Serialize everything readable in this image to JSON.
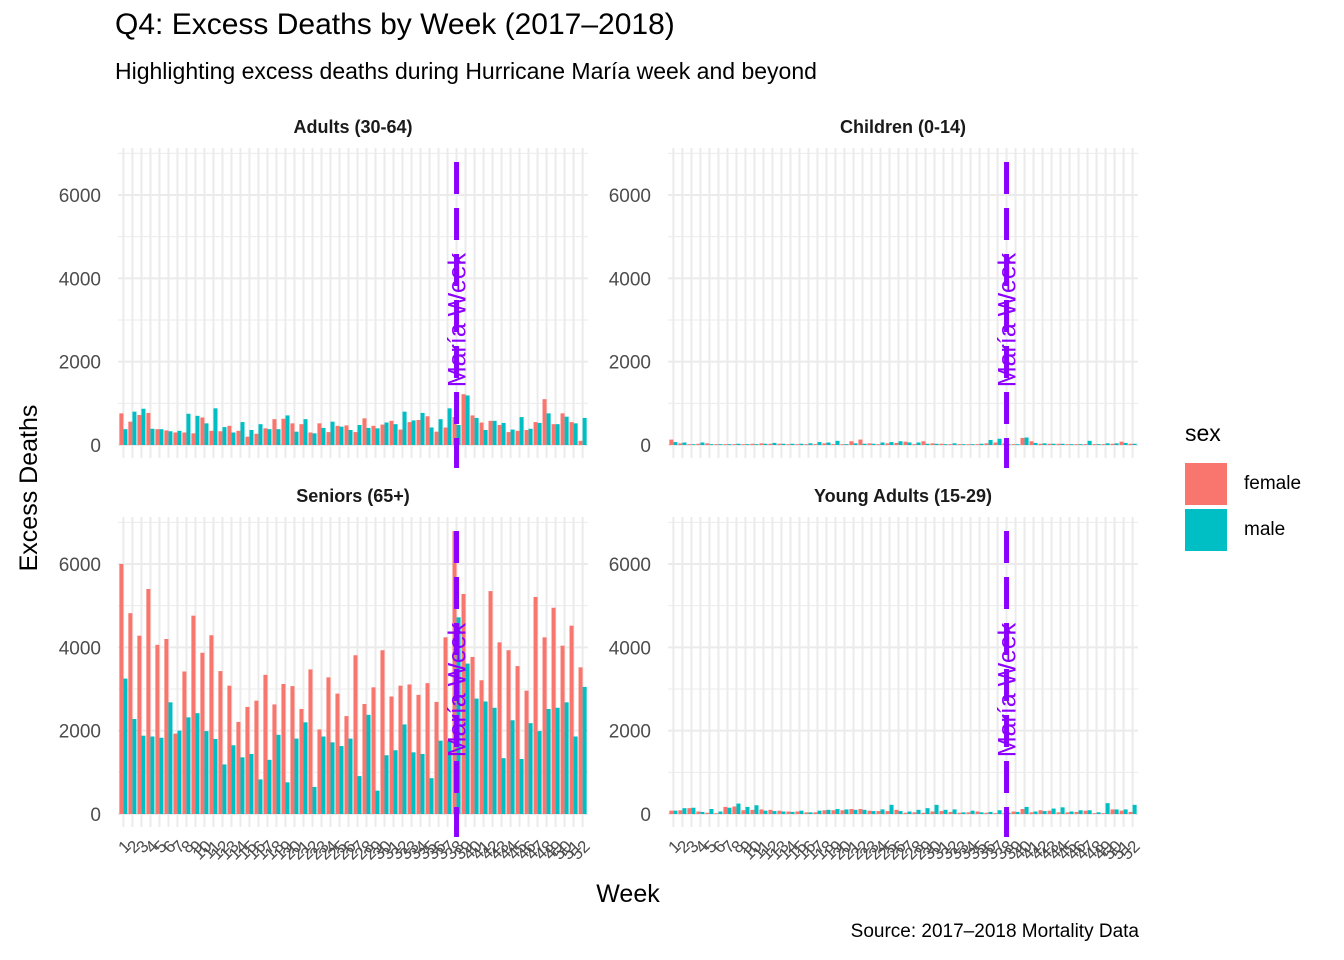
{
  "title": "Q4: Excess Deaths by Week (2017–2018)",
  "subtitle": "Highlighting excess deaths during Hurricane María week and beyond",
  "caption": "Source: 2017–2018 Mortality Data",
  "legend": {
    "title": "sex",
    "items": [
      {
        "label": "female",
        "color": "#F8766D"
      },
      {
        "label": "male",
        "color": "#00BFC4"
      }
    ]
  },
  "chart_data": {
    "type": "bar",
    "xlabel": "Week",
    "ylabel": "Excess Deaths",
    "ylim": [
      0,
      7000
    ],
    "yticks": [
      0,
      2000,
      4000,
      6000
    ],
    "grid": true,
    "legend_position": "right",
    "x": [
      1,
      2,
      3,
      4,
      5,
      6,
      7,
      8,
      9,
      10,
      11,
      12,
      13,
      14,
      15,
      16,
      17,
      18,
      19,
      20,
      21,
      22,
      23,
      24,
      25,
      26,
      27,
      28,
      29,
      30,
      31,
      32,
      33,
      34,
      35,
      36,
      37,
      38,
      39,
      40,
      41,
      42,
      43,
      44,
      45,
      46,
      47,
      48,
      49,
      50,
      51,
      52
    ],
    "vline": {
      "x": 38,
      "label": "María Week",
      "color": "#8B00FF"
    },
    "panels": [
      {
        "name": "Adults (30-64)",
        "series": [
          {
            "name": "female",
            "values": [
              760,
              560,
              720,
              770,
              380,
              350,
              300,
              300,
              280,
              660,
              340,
              330,
              460,
              340,
              200,
              270,
              400,
              620,
              630,
              520,
              500,
              300,
              520,
              310,
              460,
              470,
              310,
              640,
              460,
              490,
              580,
              370,
              550,
              600,
              690,
              320,
              420,
              670,
              1220,
              710,
              540,
              580,
              480,
              310,
              340,
              360,
              550,
              1100,
              500,
              760,
              550,
              100
            ]
          },
          {
            "name": "male",
            "values": [
              380,
              800,
              870,
              390,
              380,
              330,
              340,
              750,
              700,
              520,
              880,
              430,
              300,
              550,
              360,
              500,
              380,
              380,
              710,
              320,
              620,
              280,
              410,
              560,
              440,
              360,
              480,
              410,
              400,
              540,
              500,
              800,
              590,
              770,
              420,
              620,
              880,
              480,
              1190,
              650,
              360,
              580,
              530,
              370,
              670,
              390,
              530,
              760,
              500,
              680,
              520,
              650
            ]
          }
        ]
      },
      {
        "name": "Children (0-14)",
        "series": [
          {
            "name": "female",
            "values": [
              130,
              40,
              10,
              30,
              40,
              10,
              20,
              20,
              10,
              30,
              40,
              30,
              30,
              20,
              10,
              20,
              20,
              40,
              10,
              10,
              90,
              130,
              40,
              20,
              40,
              50,
              80,
              20,
              90,
              40,
              30,
              20,
              20,
              10,
              20,
              40,
              60,
              40,
              10,
              170,
              90,
              30,
              30,
              30,
              10,
              10,
              20,
              20,
              10,
              30,
              80,
              30
            ]
          },
          {
            "name": "male",
            "values": [
              70,
              60,
              10,
              60,
              20,
              20,
              20,
              30,
              20,
              20,
              30,
              50,
              30,
              30,
              30,
              40,
              70,
              60,
              100,
              20,
              40,
              30,
              30,
              60,
              70,
              90,
              60,
              60,
              30,
              30,
              20,
              40,
              10,
              10,
              30,
              120,
              150,
              10,
              10,
              180,
              50,
              40,
              30,
              30,
              20,
              20,
              100,
              20,
              40,
              40,
              50,
              30
            ]
          }
        ]
      },
      {
        "name": "Seniors (65+)",
        "series": [
          {
            "name": "female",
            "values": [
              6000,
              4820,
              4280,
              5400,
              4060,
              4200,
              1930,
              3420,
              4760,
              3870,
              4290,
              3430,
              3080,
              2210,
              2570,
              2720,
              3340,
              2630,
              3120,
              3070,
              2520,
              3470,
              2030,
              3280,
              2890,
              2350,
              3810,
              2640,
              3040,
              3930,
              2820,
              3080,
              3110,
              2860,
              3140,
              2690,
              4240,
              6790,
              5280,
              3770,
              3210,
              5350,
              4120,
              3930,
              3550,
              2960,
              5210,
              4240,
              4950,
              4040,
              4520,
              3520
            ]
          },
          {
            "name": "male",
            "values": [
              3250,
              2280,
              1880,
              1860,
              1830,
              2680,
              2000,
              2320,
              2420,
              1990,
              1800,
              1190,
              1650,
              1360,
              1440,
              830,
              1300,
              1900,
              760,
              1810,
              2200,
              650,
              1860,
              1720,
              1630,
              1810,
              910,
              2380,
              560,
              1410,
              1530,
              2150,
              1480,
              1440,
              860,
              1760,
              1770,
              4720,
              3610,
              2770,
              2700,
              2550,
              1340,
              2250,
              1320,
              2180,
              1990,
              2520,
              2550,
              2680,
              1860,
              3050
            ]
          }
        ]
      },
      {
        "name": "Young Adults (15-29)",
        "series": [
          {
            "name": "female",
            "values": [
              80,
              90,
              140,
              60,
              30,
              20,
              170,
              180,
              90,
              100,
              110,
              100,
              80,
              60,
              60,
              40,
              40,
              90,
              90,
              90,
              120,
              120,
              80,
              70,
              70,
              100,
              30,
              40,
              30,
              60,
              70,
              50,
              30,
              40,
              60,
              30,
              20,
              10,
              60,
              120,
              40,
              90,
              80,
              40,
              40,
              50,
              80,
              10,
              10,
              110,
              80,
              50
            ]
          },
          {
            "name": "male",
            "values": [
              80,
              140,
              150,
              50,
              120,
              60,
              150,
              250,
              170,
              210,
              80,
              70,
              60,
              50,
              80,
              40,
              80,
              100,
              120,
              110,
              100,
              100,
              70,
              110,
              220,
              70,
              60,
              100,
              140,
              220,
              100,
              110,
              40,
              80,
              40,
              50,
              90,
              30,
              50,
              170,
              60,
              70,
              130,
              160,
              60,
              90,
              90,
              40,
              260,
              110,
              110,
              220
            ]
          }
        ]
      }
    ]
  }
}
